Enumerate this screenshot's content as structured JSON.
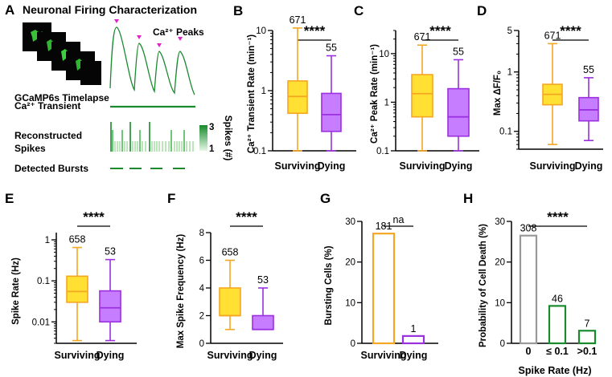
{
  "colors": {
    "surviving": "#F5A623",
    "surviving_fill": "#FFE033",
    "dying": "#9B30E0",
    "dying_fill": "#C77DFF",
    "green": "#1A8A2E",
    "magenta": "#E020C8",
    "gray": "#999999"
  },
  "panel_a": {
    "letter": "A",
    "title": "Neuronal Firing Characterization",
    "peaks_label": "Ca²⁺ Peaks",
    "timelapse_label": "GCaMP6s Timelapse",
    "transient_label": "Ca²⁺ Transient",
    "spikes_label": "Reconstructed Spikes",
    "bursts_label": "Detected Bursts",
    "colorbar_label": "Spikes (#)",
    "colorbar_max": "3",
    "colorbar_min": "1"
  },
  "chart_data": [
    {
      "id": "B",
      "type": "box",
      "categories": [
        "Surviving",
        "Dying"
      ],
      "ylabel": "Ca²⁺ Transient Rate (min⁻¹)",
      "scale": "log",
      "ylim": [
        0.1,
        10
      ],
      "yticks": [
        "0.1",
        "1",
        "10"
      ],
      "boxes": [
        {
          "min": 0.1,
          "q1": 0.42,
          "median": 0.8,
          "q3": 1.45,
          "max": 11
        },
        {
          "min": 0.1,
          "q1": 0.21,
          "median": 0.4,
          "q3": 0.9,
          "max": 3.8
        }
      ],
      "n": [
        "671",
        "55"
      ],
      "significance": "****"
    },
    {
      "id": "C",
      "type": "box",
      "categories": [
        "Surviving",
        "Dying"
      ],
      "ylabel": "Ca²⁺ Peak Rate (min⁻¹)",
      "scale": "log",
      "ylim": [
        0.1,
        30
      ],
      "yticks": [
        "0.1",
        "1",
        "10"
      ],
      "boxes": [
        {
          "min": 0.1,
          "q1": 0.5,
          "median": 1.5,
          "q3": 3.7,
          "max": 15
        },
        {
          "min": 0.1,
          "q1": 0.2,
          "median": 0.5,
          "q3": 1.9,
          "max": 7.5
        }
      ],
      "n": [
        "671",
        "55"
      ],
      "significance": "****"
    },
    {
      "id": "D",
      "type": "box",
      "categories": [
        "Surviving",
        "Dying"
      ],
      "ylabel": "Max ΔF/F₀",
      "scale": "log",
      "ylim": [
        0.05,
        5
      ],
      "yticks": [
        "0.1",
        "1",
        "5"
      ],
      "boxes": [
        {
          "min": 0.06,
          "q1": 0.28,
          "median": 0.42,
          "q3": 0.62,
          "max": 3.0
        },
        {
          "min": 0.07,
          "q1": 0.15,
          "median": 0.23,
          "q3": 0.37,
          "max": 0.8
        }
      ],
      "n": [
        "671",
        "55"
      ],
      "significance": "****"
    },
    {
      "id": "E",
      "type": "box",
      "categories": [
        "Surviving",
        "Dying"
      ],
      "ylabel": "Spike Rate (Hz)",
      "scale": "log",
      "ylim": [
        0.003,
        1.5
      ],
      "yticks": [
        "0.01",
        "0.1",
        "1"
      ],
      "boxes": [
        {
          "min": 0.0035,
          "q1": 0.03,
          "median": 0.055,
          "q3": 0.13,
          "max": 0.65
        },
        {
          "min": 0.0035,
          "q1": 0.01,
          "median": 0.022,
          "q3": 0.057,
          "max": 0.33
        }
      ],
      "n": [
        "658",
        "53"
      ],
      "significance": "****"
    },
    {
      "id": "F",
      "type": "box",
      "categories": [
        "Surviving",
        "Dying"
      ],
      "ylabel": "Max Spike Frequency (Hz)",
      "scale": "linear",
      "ylim": [
        0,
        8
      ],
      "yticks": [
        "0",
        "2",
        "4",
        "6",
        "8"
      ],
      "boxes": [
        {
          "min": 1,
          "q1": 2,
          "median": 2,
          "q3": 4,
          "max": 6
        },
        {
          "min": 1,
          "q1": 1,
          "median": 1,
          "q3": 2,
          "max": 4
        }
      ],
      "n": [
        "658",
        "53"
      ],
      "significance": "****"
    },
    {
      "id": "G",
      "type": "bar",
      "categories": [
        "Surviving",
        "Dying"
      ],
      "ylabel": "Bursting Cells (%)",
      "ylim": [
        0,
        30
      ],
      "yticks": [
        "0",
        "10",
        "20",
        "30"
      ],
      "values": [
        27,
        1.8
      ],
      "n": [
        "181",
        "1"
      ],
      "significance": "na"
    },
    {
      "id": "H",
      "type": "bar",
      "categories": [
        "0",
        "≤ 0.1",
        ">0.1"
      ],
      "ylabel": "Probability of Cell Death (%)",
      "xlabel": "Spike Rate (Hz)",
      "ylim": [
        0,
        30
      ],
      "yticks": [
        "0",
        "10",
        "20",
        "30"
      ],
      "values": [
        26.5,
        9.2,
        3.1
      ],
      "n": [
        "308",
        "46",
        "7"
      ],
      "significance": "****"
    }
  ]
}
